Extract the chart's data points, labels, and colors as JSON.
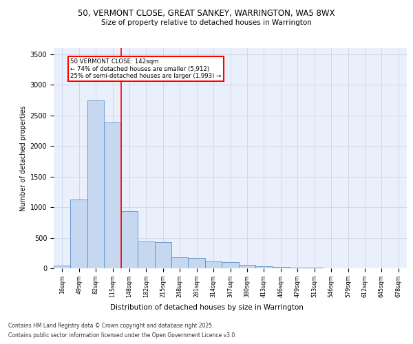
{
  "title_line1": "50, VERMONT CLOSE, GREAT SANKEY, WARRINGTON, WA5 8WX",
  "title_line2": "Size of property relative to detached houses in Warrington",
  "xlabel": "Distribution of detached houses by size in Warrington",
  "ylabel": "Number of detached properties",
  "categories": [
    "16sqm",
    "49sqm",
    "82sqm",
    "115sqm",
    "148sqm",
    "182sqm",
    "215sqm",
    "248sqm",
    "281sqm",
    "314sqm",
    "347sqm",
    "380sqm",
    "413sqm",
    "446sqm",
    "479sqm",
    "513sqm",
    "546sqm",
    "579sqm",
    "612sqm",
    "645sqm",
    "678sqm"
  ],
  "values": [
    50,
    1120,
    2750,
    2380,
    930,
    440,
    430,
    175,
    170,
    110,
    100,
    60,
    30,
    20,
    10,
    8,
    5,
    3,
    2,
    2,
    1
  ],
  "bar_color": "#c5d8f0",
  "bar_edge_color": "#5b8fc9",
  "grid_color": "#d0d8e8",
  "background_color": "#eaf0fb",
  "red_line_x": 3.5,
  "annotation_title": "50 VERMONT CLOSE: 142sqm",
  "annotation_line2": "← 74% of detached houses are smaller (5,912)",
  "annotation_line3": "25% of semi-detached houses are larger (1,993) →",
  "footer_line1": "Contains HM Land Registry data © Crown copyright and database right 2025.",
  "footer_line2": "Contains public sector information licensed under the Open Government Licence v3.0.",
  "ylim": [
    0,
    3600
  ],
  "yticks": [
    0,
    500,
    1000,
    1500,
    2000,
    2500,
    3000,
    3500
  ]
}
